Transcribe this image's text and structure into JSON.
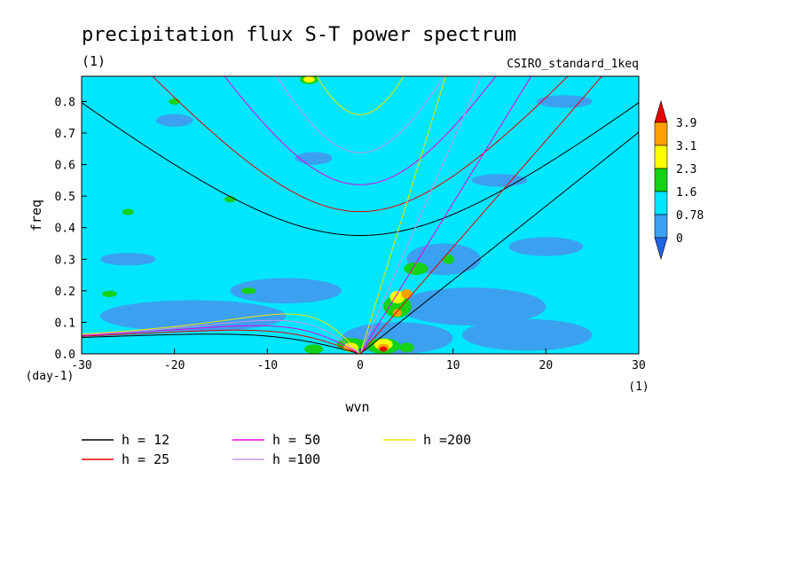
{
  "chart_data": {
    "type": "heatmap",
    "title": "precipitation flux S-T power spectrum",
    "units": "(1)",
    "dataset": "CSIRO_standard_1keq",
    "xlabel": "wvn",
    "ylabel": "freq",
    "x_unit": "(1)",
    "y_unit": "(day-1)",
    "xlim": [
      -30,
      30
    ],
    "ylim": [
      0,
      0.88
    ],
    "x_ticks": [
      -30,
      -20,
      -10,
      0,
      10,
      20,
      30
    ],
    "x_tick_labels": [
      "-30",
      "-20",
      "-10",
      "0",
      "10",
      "20",
      "30"
    ],
    "y_ticks": [
      0,
      0.1,
      0.2,
      0.3,
      0.4,
      0.5,
      0.6,
      0.7,
      0.8
    ],
    "y_tick_labels": [
      "0.0",
      "0.1",
      "0.2",
      "0.3",
      "0.4",
      "0.5",
      "0.6",
      "0.7",
      "0.8"
    ],
    "colorbar": {
      "levels": [
        "0",
        "0.78",
        "1.6",
        "2.3",
        "3.1",
        "3.9"
      ],
      "colors": [
        "#1e64e6",
        "#3ca0f0",
        "#00e6ff",
        "#14d214",
        "#ffff00",
        "#ffa000",
        "#e60000"
      ]
    },
    "field_regions": [
      {
        "level": 1,
        "x": -18,
        "y": 0.12,
        "rx": 10,
        "ry": 0.05
      },
      {
        "level": 1,
        "x": -8,
        "y": 0.2,
        "rx": 6,
        "ry": 0.04
      },
      {
        "level": 1,
        "x": 4,
        "y": 0.05,
        "rx": 6,
        "ry": 0.05
      },
      {
        "level": 1,
        "x": 12,
        "y": 0.15,
        "rx": 8,
        "ry": 0.06
      },
      {
        "level": 1,
        "x": 18,
        "y": 0.06,
        "rx": 7,
        "ry": 0.05
      },
      {
        "level": 1,
        "x": 9,
        "y": 0.3,
        "rx": 4,
        "ry": 0.05
      },
      {
        "level": 1,
        "x": 20,
        "y": 0.34,
        "rx": 4,
        "ry": 0.03
      },
      {
        "level": 1,
        "x": -25,
        "y": 0.3,
        "rx": 3,
        "ry": 0.02
      },
      {
        "level": 1,
        "x": -20,
        "y": 0.74,
        "rx": 2,
        "ry": 0.02
      },
      {
        "level": 1,
        "x": 15,
        "y": 0.55,
        "rx": 3,
        "ry": 0.02
      },
      {
        "level": 1,
        "x": -5,
        "y": 0.62,
        "rx": 2,
        "ry": 0.02
      },
      {
        "level": 1,
        "x": 22,
        "y": 0.8,
        "rx": 3,
        "ry": 0.02
      },
      {
        "level": 3,
        "x": 6,
        "y": 0.27,
        "rx": 1.3,
        "ry": 0.02
      },
      {
        "level": 3,
        "x": -27,
        "y": 0.19,
        "rx": 0.8,
        "ry": 0.01
      },
      {
        "level": 3,
        "x": -14,
        "y": 0.49,
        "rx": 0.6,
        "ry": 0.01
      },
      {
        "level": 3,
        "x": -25,
        "y": 0.45,
        "rx": 0.6,
        "ry": 0.01
      },
      {
        "level": 3,
        "x": -12,
        "y": 0.2,
        "rx": 0.8,
        "ry": 0.01
      },
      {
        "level": 3,
        "x": -20,
        "y": 0.8,
        "rx": 0.6,
        "ry": 0.01
      },
      {
        "level": 3,
        "x": 9.5,
        "y": 0.3,
        "rx": 0.6,
        "ry": 0.015
      },
      {
        "level": 3,
        "x": 4,
        "y": 0.15,
        "rx": 1.5,
        "ry": 0.035
      },
      {
        "level": 3,
        "x": -1,
        "y": 0.03,
        "rx": 1.5,
        "ry": 0.02
      },
      {
        "level": 3,
        "x": 2.5,
        "y": 0.025,
        "rx": 1.8,
        "ry": 0.025
      },
      {
        "level": 3,
        "x": -5,
        "y": 0.015,
        "rx": 1,
        "ry": 0.015
      },
      {
        "level": 3,
        "x": 5,
        "y": 0.02,
        "rx": 0.8,
        "ry": 0.015
      },
      {
        "level": 3,
        "x": -5.5,
        "y": 0.87,
        "rx": 1,
        "ry": 0.015
      },
      {
        "level": 4,
        "x": -1,
        "y": 0.02,
        "rx": 0.8,
        "ry": 0.015
      },
      {
        "level": 4,
        "x": 4,
        "y": 0.18,
        "rx": 0.8,
        "ry": 0.02
      },
      {
        "level": 4,
        "x": 2.5,
        "y": 0.03,
        "rx": 1,
        "ry": 0.018
      },
      {
        "level": 4,
        "x": -5.5,
        "y": 0.87,
        "rx": 0.6,
        "ry": 0.01
      },
      {
        "level": 5,
        "x": 5,
        "y": 0.19,
        "rx": 0.6,
        "ry": 0.015
      },
      {
        "level": 5,
        "x": 4,
        "y": 0.13,
        "rx": 0.5,
        "ry": 0.012
      },
      {
        "level": 5,
        "x": 2.5,
        "y": 0.02,
        "rx": 0.6,
        "ry": 0.012
      },
      {
        "level": 6,
        "x": 2.5,
        "y": 0.015,
        "rx": 0.4,
        "ry": 0.008
      }
    ],
    "series": [
      {
        "name": "h = 12",
        "h": 12,
        "color": "#000000"
      },
      {
        "name": "h = 25",
        "h": 25,
        "color": "#e60000"
      },
      {
        "name": "h = 50",
        "h": 50,
        "color": "#e600e6"
      },
      {
        "name": "h =100",
        "h": 100,
        "color": "#c896e6"
      },
      {
        "name": "h =200",
        "h": 200,
        "color": "#f0e600"
      }
    ]
  }
}
